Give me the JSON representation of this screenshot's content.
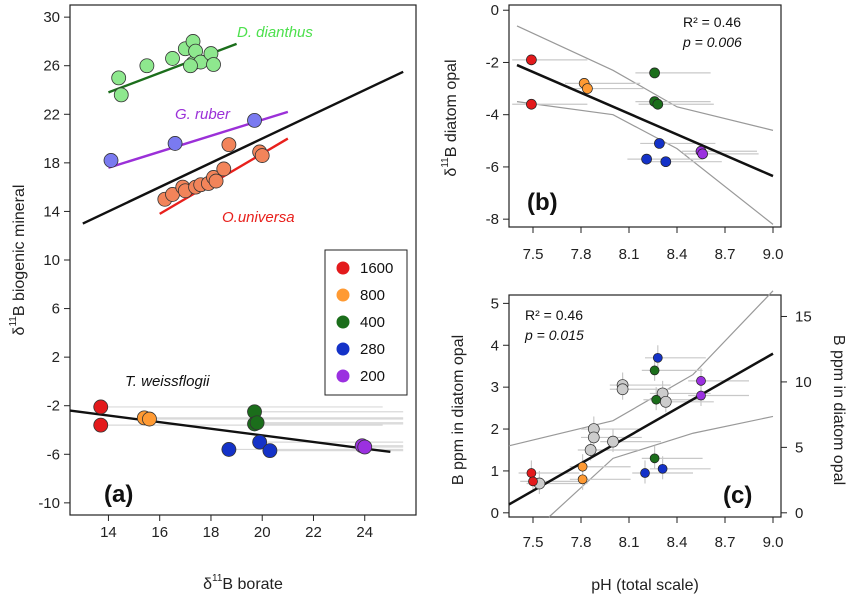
{
  "colors": {
    "1600": "#e31a1c",
    "800": "#ff9a33",
    "400": "#1b6e1b",
    "280": "#1432c8",
    "200": "#9b30e0",
    "grey": "#cccccc",
    "dianthus": "#4de04d",
    "ruber": "#9b30d8",
    "universa": "#e8201c",
    "universa_pt": "#f2845a",
    "dianthus_pt": "#8ee88e",
    "ruber_pt": "#7a7af0"
  },
  "chart_data": [
    {
      "id": "a",
      "type": "scatter",
      "panel_label": "(a)",
      "xlabel_main": "δ",
      "xlabel_sup": "11",
      "xlabel_rest": "B borate",
      "ylabel_main": "δ",
      "ylabel_sup": "11",
      "ylabel_rest": "B biogenic mineral",
      "xlim": [
        12.5,
        26
      ],
      "ylim": [
        -11,
        31
      ],
      "xticks": [
        "14",
        "16",
        "18",
        "20",
        "22",
        "24"
      ],
      "yticks": [
        "30",
        "26",
        "22",
        "18",
        "14",
        "10",
        "6",
        "2",
        "-2",
        "-6",
        "-10"
      ],
      "species_labels": [
        "D. dianthus",
        "G. ruber",
        "O.universa",
        "T. weissflogii"
      ],
      "legend_title": "",
      "legend": [
        "1600",
        "800",
        "400",
        "280",
        "200"
      ],
      "series": [
        {
          "label_ref": "D. dianthus",
          "points": [
            [
              14.4,
              25.0
            ],
            [
              14.5,
              23.6
            ],
            [
              15.5,
              26.0
            ],
            [
              16.5,
              26.6
            ],
            [
              17.0,
              27.4
            ],
            [
              17.3,
              26.2
            ],
            [
              17.3,
              28.0
            ],
            [
              17.4,
              27.2
            ],
            [
              17.6,
              26.3
            ],
            [
              18.0,
              27.0
            ],
            [
              18.1,
              26.1
            ],
            [
              17.2,
              26.0
            ]
          ]
        },
        {
          "label_ref": "G. ruber",
          "points": [
            [
              14.1,
              18.2
            ],
            [
              16.6,
              19.6
            ],
            [
              19.7,
              21.5
            ]
          ]
        },
        {
          "label_ref": "O.universa",
          "points": [
            [
              16.2,
              15.0
            ],
            [
              16.5,
              15.4
            ],
            [
              16.9,
              16.0
            ],
            [
              17.0,
              15.7
            ],
            [
              17.4,
              16.0
            ],
            [
              17.6,
              16.2
            ],
            [
              17.9,
              16.3
            ],
            [
              18.1,
              16.8
            ],
            [
              18.2,
              16.5
            ],
            [
              18.5,
              17.5
            ],
            [
              18.7,
              19.5
            ],
            [
              19.9,
              18.9
            ],
            [
              20.0,
              18.6
            ]
          ]
        },
        {
          "label_ref": "T. weissflogii",
          "points": [
            [
              13.7,
              -2.1,
              "1600"
            ],
            [
              13.7,
              -3.6,
              "1600"
            ],
            [
              15.4,
              -3.0,
              "800"
            ],
            [
              15.6,
              -3.1,
              "800"
            ],
            [
              19.7,
              -2.5,
              "400"
            ],
            [
              19.7,
              -3.5,
              "400"
            ],
            [
              19.8,
              -3.4,
              "400"
            ],
            [
              18.7,
              -5.6,
              "280"
            ],
            [
              19.9,
              -5.0,
              "280"
            ],
            [
              20.3,
              -5.7,
              "280"
            ],
            [
              23.9,
              -5.3,
              "200"
            ],
            [
              24.0,
              -5.4,
              "200"
            ]
          ]
        }
      ],
      "fits": [
        {
          "label_ref": "D. dianthus",
          "x": [
            14.0,
            19.0
          ],
          "y": [
            23.8,
            27.8
          ]
        },
        {
          "label_ref": "G. ruber",
          "x": [
            14.0,
            21.0
          ],
          "y": [
            17.6,
            22.2
          ]
        },
        {
          "label_ref": "O.universa",
          "x": [
            16.0,
            21.0
          ],
          "y": [
            13.8,
            20.0
          ]
        },
        {
          "label_ref": "all",
          "x": [
            13.0,
            25.5
          ],
          "y": [
            13.0,
            25.5
          ]
        },
        {
          "label_ref": "T. weissflogii",
          "x": [
            12.5,
            25.0
          ],
          "y": [
            -2.4,
            -5.8
          ]
        }
      ]
    },
    {
      "id": "b",
      "type": "scatter",
      "panel_label": "(b)",
      "ylabel_main": "δ",
      "ylabel_sup": "11",
      "ylabel_rest": "B diatom opal",
      "xlim": [
        7.35,
        9.05
      ],
      "ylim": [
        -8.3,
        0.2
      ],
      "xticks": [
        "7.5",
        "7.8",
        "8.1",
        "8.4",
        "8.7",
        "9.0"
      ],
      "yticks": [
        "0",
        "-2",
        "-4",
        "-6",
        "-8"
      ],
      "r2": "R² = 0.46",
      "p": "p = 0.006",
      "points": [
        [
          7.49,
          -1.9,
          "1600"
        ],
        [
          7.49,
          -3.6,
          "1600"
        ],
        [
          7.82,
          -2.8,
          "800"
        ],
        [
          7.84,
          -3.0,
          "800"
        ],
        [
          8.26,
          -2.4,
          "400"
        ],
        [
          8.26,
          -3.5,
          "400"
        ],
        [
          8.28,
          -3.6,
          "400"
        ],
        [
          8.29,
          -5.1,
          "280"
        ],
        [
          8.21,
          -5.7,
          "280"
        ],
        [
          8.33,
          -5.8,
          "280"
        ],
        [
          8.55,
          -5.4,
          "200"
        ],
        [
          8.56,
          -5.5,
          "200"
        ]
      ],
      "fit": {
        "x": [
          7.4,
          9.0
        ],
        "y": [
          -2.1,
          -6.35
        ]
      },
      "ci_upper": {
        "x": [
          7.4,
          8.0,
          8.4,
          9.0
        ],
        "y": [
          -0.6,
          -2.3,
          -3.7,
          -4.6
        ]
      },
      "ci_lower": {
        "x": [
          7.4,
          8.0,
          8.4,
          9.0
        ],
        "y": [
          -3.5,
          -4.0,
          -5.3,
          -8.2
        ]
      }
    },
    {
      "id": "c",
      "type": "scatter",
      "panel_label": "(c)",
      "xlabel": "pH (total scale)",
      "ylabel": "B ppm in diatom opal",
      "ylabel_right": "B ppm in diatom opal",
      "xlim": [
        7.35,
        9.05
      ],
      "ylim": [
        -0.1,
        5.2
      ],
      "xticks": [
        "7.5",
        "7.8",
        "8.1",
        "8.4",
        "8.7",
        "9.0"
      ],
      "yticks": [
        "0",
        "1",
        "2",
        "3",
        "4",
        "5"
      ],
      "yticks_right": [
        "0",
        "5",
        "10",
        "15"
      ],
      "r2": "R² = 0.46",
      "p": "p = 0.015",
      "points": [
        [
          7.49,
          0.95,
          "1600"
        ],
        [
          7.5,
          0.75,
          "1600"
        ],
        [
          7.81,
          1.1,
          "800"
        ],
        [
          7.81,
          0.8,
          "800"
        ],
        [
          8.26,
          3.4,
          "400"
        ],
        [
          8.27,
          2.7,
          "400"
        ],
        [
          8.26,
          1.3,
          "400"
        ],
        [
          8.28,
          3.7,
          "280"
        ],
        [
          8.2,
          0.95,
          "280"
        ],
        [
          8.31,
          1.05,
          "280"
        ],
        [
          8.55,
          3.15,
          "200"
        ],
        [
          8.55,
          2.8,
          "200"
        ]
      ],
      "grey_points": [
        [
          7.54,
          0.7
        ],
        [
          7.88,
          2.0
        ],
        [
          7.88,
          1.8
        ],
        [
          7.86,
          1.5
        ],
        [
          8.0,
          1.7
        ],
        [
          8.06,
          3.05
        ],
        [
          8.06,
          2.95
        ],
        [
          8.31,
          2.85
        ],
        [
          8.33,
          2.65
        ]
      ],
      "fit": {
        "x": [
          7.35,
          9.0
        ],
        "y": [
          0.2,
          3.8
        ]
      },
      "ci_upper": {
        "x": [
          7.35,
          8.0,
          8.5,
          9.0
        ],
        "y": [
          1.6,
          2.2,
          3.3,
          5.3
        ]
      },
      "ci_lower": {
        "x": [
          7.6,
          8.0,
          8.5,
          9.0
        ],
        "y": [
          -0.1,
          1.3,
          1.9,
          2.3
        ]
      }
    }
  ]
}
